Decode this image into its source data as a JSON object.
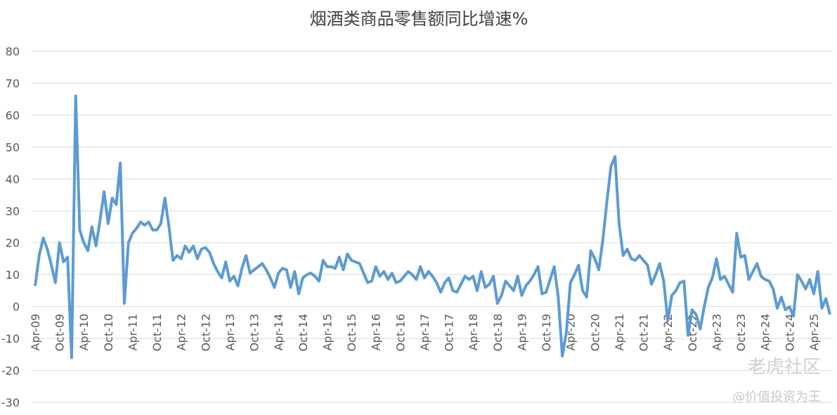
{
  "chart_data": {
    "type": "line",
    "title": "烟酒类商品零售额同比增速%",
    "categories": [
      "Apr-09",
      null,
      null,
      null,
      null,
      null,
      "Oct-09",
      null,
      null,
      null,
      null,
      null,
      "Apr-10",
      null,
      null,
      null,
      null,
      null,
      "Oct-10",
      null,
      null,
      null,
      null,
      null,
      "Apr-11",
      null,
      null,
      null,
      null,
      null,
      "Oct-11",
      null,
      null,
      null,
      null,
      null,
      "Apr-12",
      null,
      null,
      null,
      null,
      null,
      "Oct-12",
      null,
      null,
      null,
      null,
      null,
      "Apr-13",
      null,
      null,
      null,
      null,
      null,
      "Oct-13",
      null,
      null,
      null,
      null,
      null,
      "Apr-14",
      null,
      null,
      null,
      null,
      null,
      "Oct-14",
      null,
      null,
      null,
      null,
      null,
      "Apr-15",
      null,
      null,
      null,
      null,
      null,
      "Oct-15",
      null,
      null,
      null,
      null,
      null,
      "Apr-16",
      null,
      null,
      null,
      null,
      null,
      "Oct-16",
      null,
      null,
      null,
      null,
      null,
      "Apr-17",
      null,
      null,
      null,
      null,
      null,
      "Oct-17",
      null,
      null,
      null,
      null,
      null,
      "Apr-18",
      null,
      null,
      null,
      null,
      null,
      "Oct-18",
      null,
      null,
      null,
      null,
      null,
      "Apr-19",
      null,
      null,
      null,
      null,
      null,
      "Oct-19",
      null,
      null,
      null,
      null,
      null,
      "Apr-20",
      null,
      null,
      null,
      null,
      null,
      "Oct-20",
      null,
      null,
      null,
      null,
      null,
      "Apr-21",
      null,
      null,
      null,
      null,
      null,
      "Oct-21",
      null,
      null,
      null,
      null,
      null,
      "Apr-22",
      null,
      null,
      null,
      null,
      null,
      "Oct-22",
      null,
      null,
      null,
      null,
      null,
      "Apr-23",
      null,
      null,
      null,
      null,
      null,
      "Oct-23",
      null,
      null,
      null,
      null,
      null,
      "Apr-24",
      null,
      null,
      null,
      null,
      null,
      "Oct-24",
      null,
      null,
      null,
      null,
      null,
      "Apr-25",
      null,
      null,
      null,
      null
    ],
    "values": [
      6.5,
      16,
      21.5,
      18,
      13,
      7.5,
      20,
      14,
      15.5,
      -16,
      66,
      24,
      20,
      17.5,
      25,
      19,
      27,
      36,
      26,
      34,
      32,
      45,
      1,
      20,
      23,
      24.5,
      26.5,
      25.5,
      26.5,
      24,
      24,
      26,
      34,
      25,
      14.5,
      16,
      15,
      19,
      17,
      19,
      15,
      18,
      18.5,
      17,
      13.5,
      11,
      9,
      14,
      8,
      9.5,
      6.5,
      12,
      16,
      10.5,
      11.5,
      12.5,
      13.5,
      11.5,
      9,
      6,
      10.5,
      12,
      11.5,
      6,
      11,
      4,
      9,
      10,
      10.5,
      9.5,
      8,
      14.5,
      12.5,
      12.5,
      12,
      15.5,
      11.5,
      16.5,
      14.5,
      14,
      13.5,
      10.5,
      7.5,
      8,
      12.5,
      9.5,
      11,
      8.5,
      10.5,
      7.5,
      8,
      9.5,
      11,
      10,
      8.5,
      12.5,
      9,
      11,
      9.5,
      7.5,
      4.5,
      7.5,
      9,
      5,
      4.5,
      7,
      9.5,
      8.5,
      9.5,
      5,
      11,
      6,
      7,
      9.5,
      1,
      3.5,
      8,
      6.5,
      5,
      9.5,
      3.5,
      6.5,
      8,
      10,
      12.5,
      4,
      4.5,
      8.5,
      12.5,
      3,
      -15.5,
      -8,
      7.5,
      10,
      13,
      5,
      3,
      17.5,
      15,
      11.5,
      21,
      33,
      44,
      47,
      26,
      16,
      18,
      15,
      14.5,
      16,
      14.5,
      13,
      7,
      10,
      13.5,
      8,
      -4.5,
      3.5,
      5,
      7.5,
      8,
      -9,
      -1,
      -2.5,
      -7,
      0,
      6,
      9,
      15,
      8.5,
      9.5,
      7,
      4.5,
      23,
      15.5,
      16,
      8.5,
      11,
      13.5,
      9.5,
      8.5,
      8,
      5.5,
      -0.5,
      3,
      -1,
      0,
      -3,
      10,
      8,
      5.5,
      8.5,
      4,
      11,
      -0.5,
      2.5,
      -2.5
    ],
    "color": "#5b9bd5",
    "ylim": [
      -30,
      80
    ],
    "yticks": [
      -30,
      -20,
      -10,
      0,
      10,
      20,
      30,
      40,
      50,
      60,
      70,
      80
    ],
    "grid": true,
    "watermark": [
      "老虎社区",
      "@价值投资为王"
    ]
  }
}
